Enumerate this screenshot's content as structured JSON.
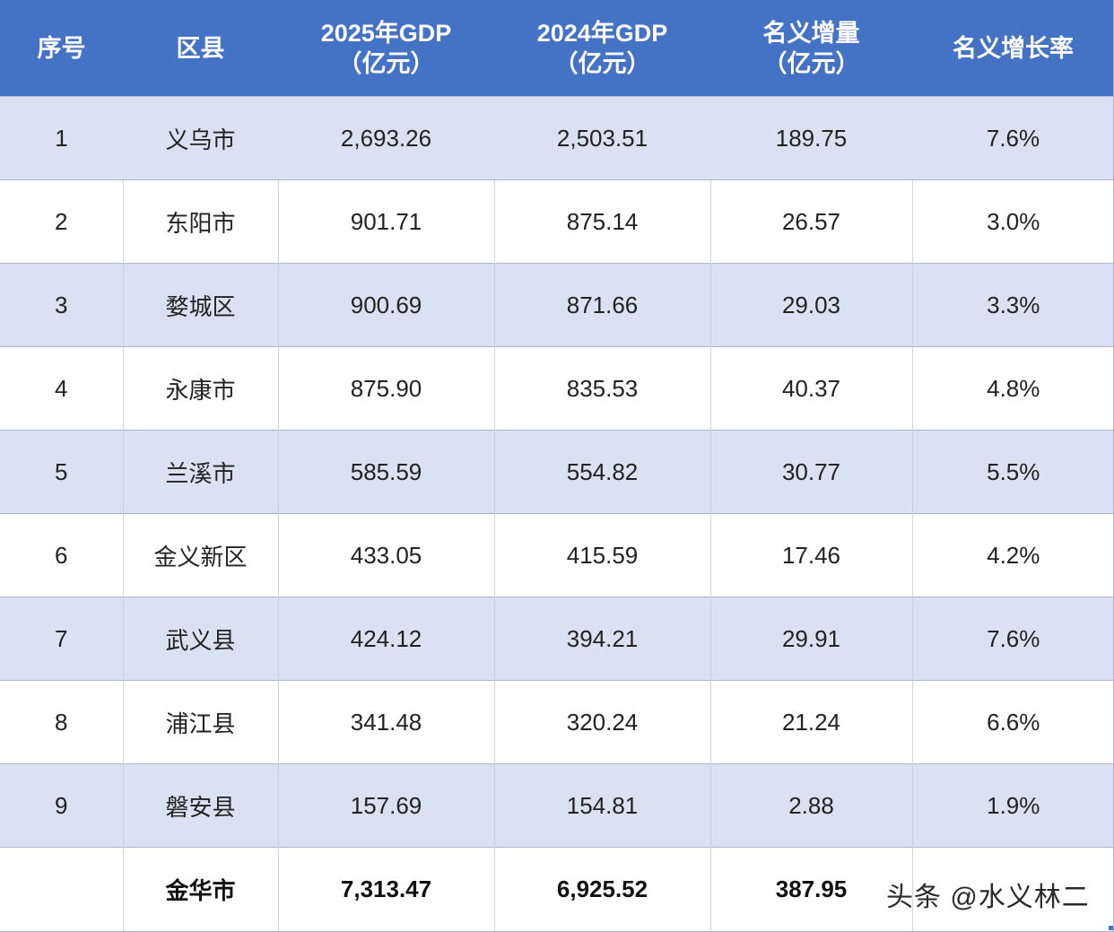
{
  "table": {
    "headers": [
      {
        "line1": "序号",
        "line2": ""
      },
      {
        "line1": "区县",
        "line2": ""
      },
      {
        "line1": "2025年GDP",
        "line2": "（亿元）"
      },
      {
        "line1": "2024年GDP",
        "line2": "（亿元）"
      },
      {
        "line1": "名义增量",
        "line2": "（亿元）"
      },
      {
        "line1": "名义增长率",
        "line2": ""
      }
    ],
    "rows": [
      {
        "rank": "1",
        "district": "义乌市",
        "gdp2025": "2,693.26",
        "gdp2024": "2,503.51",
        "increase": "189.75",
        "growth": "7.6%"
      },
      {
        "rank": "2",
        "district": "东阳市",
        "gdp2025": "901.71",
        "gdp2024": "875.14",
        "increase": "26.57",
        "growth": "3.0%"
      },
      {
        "rank": "3",
        "district": "婺城区",
        "gdp2025": "900.69",
        "gdp2024": "871.66",
        "increase": "29.03",
        "growth": "3.3%"
      },
      {
        "rank": "4",
        "district": "永康市",
        "gdp2025": "875.90",
        "gdp2024": "835.53",
        "increase": "40.37",
        "growth": "4.8%"
      },
      {
        "rank": "5",
        "district": "兰溪市",
        "gdp2025": "585.59",
        "gdp2024": "554.82",
        "increase": "30.77",
        "growth": "5.5%"
      },
      {
        "rank": "6",
        "district": "金义新区",
        "gdp2025": "433.05",
        "gdp2024": "415.59",
        "increase": "17.46",
        "growth": "4.2%"
      },
      {
        "rank": "7",
        "district": "武义县",
        "gdp2025": "424.12",
        "gdp2024": "394.21",
        "increase": "29.91",
        "growth": "7.6%"
      },
      {
        "rank": "8",
        "district": "浦江县",
        "gdp2025": "341.48",
        "gdp2024": "320.24",
        "increase": "21.24",
        "growth": "6.6%"
      },
      {
        "rank": "9",
        "district": "磐安县",
        "gdp2025": "157.69",
        "gdp2024": "154.81",
        "increase": "2.88",
        "growth": "1.9%"
      }
    ],
    "total": {
      "rank": "",
      "district": "金华市",
      "gdp2025": "7,313.47",
      "gdp2024": "6,925.52",
      "increase": "387.95",
      "growth": ""
    }
  },
  "watermark": "头条 @水义林二",
  "colors": {
    "header_bg": "#4472C4",
    "band_bg": "#D9E1F2",
    "header_text": "#FFFFFF"
  }
}
